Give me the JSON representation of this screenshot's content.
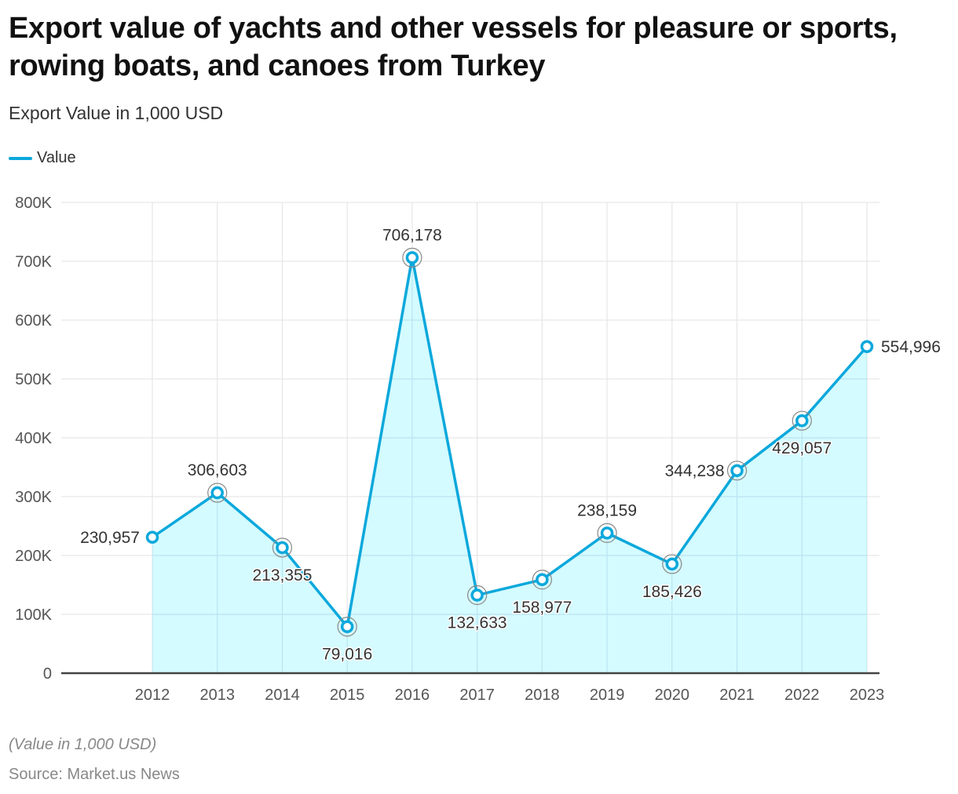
{
  "header": {
    "title": "Export value of yachts and other vessels for pleasure or sports, rowing boats, and canoes from Turkey",
    "subtitle": "Export Value in 1,000 USD"
  },
  "legend": {
    "label": "Value"
  },
  "footer": {
    "note": "(Value in 1,000 USD)",
    "source": "Source: Market.us News"
  },
  "colors": {
    "line": "#0ba8dc",
    "area": "#d4fbff",
    "grid": "#e6e6e6",
    "axis": "#444444"
  },
  "chart_data": {
    "type": "area",
    "title": "Export value of yachts and other vessels for pleasure or sports, rowing boats, and canoes from Turkey",
    "subtitle": "Export Value in 1,000 USD",
    "xlabel": "",
    "ylabel": "",
    "ylim": [
      0,
      800000
    ],
    "grid": true,
    "legend_position": "top-left",
    "categories": [
      "2012",
      "2013",
      "2014",
      "2015",
      "2016",
      "2017",
      "2018",
      "2019",
      "2020",
      "2021",
      "2022",
      "2023"
    ],
    "y_ticks": [
      0,
      100000,
      200000,
      300000,
      400000,
      500000,
      600000,
      700000,
      800000
    ],
    "y_tick_labels": [
      "0",
      "100K",
      "200K",
      "300K",
      "400K",
      "500K",
      "600K",
      "700K",
      "800K"
    ],
    "series": [
      {
        "name": "Value",
        "values": [
          230957,
          306603,
          213355,
          79016,
          706178,
          132633,
          158977,
          238159,
          185426,
          344238,
          429057,
          554996
        ],
        "labels": [
          "230,957",
          "306,603",
          "213,355",
          "79,016",
          "706,178",
          "132,633",
          "158,977",
          "238,159",
          "185,426",
          "344,238",
          "429,057",
          "554,996"
        ],
        "label_positions": [
          "left",
          "above",
          "below",
          "below",
          "above",
          "below",
          "below",
          "above",
          "below",
          "left",
          "below",
          "right"
        ]
      }
    ]
  }
}
